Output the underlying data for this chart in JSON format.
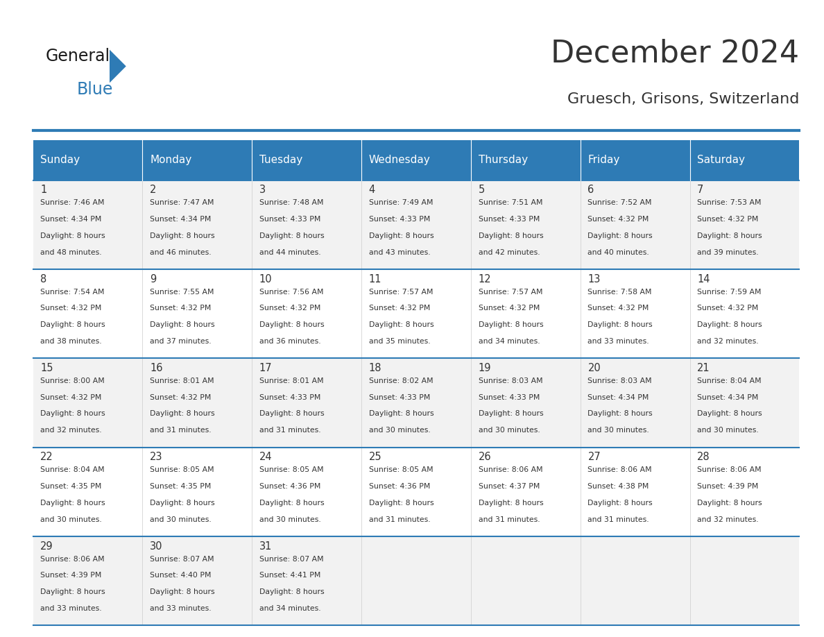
{
  "title": "December 2024",
  "subtitle": "Gruesch, Grisons, Switzerland",
  "header_bg": "#2E7BB5",
  "header_text_color": "#FFFFFF",
  "cell_bg_light": "#F2F2F2",
  "cell_bg_white": "#FFFFFF",
  "border_color": "#2E7BB5",
  "text_color": "#333333",
  "days_of_week": [
    "Sunday",
    "Monday",
    "Tuesday",
    "Wednesday",
    "Thursday",
    "Friday",
    "Saturday"
  ],
  "weeks": [
    [
      {
        "day": 1,
        "sunrise": "7:46 AM",
        "sunset": "4:34 PM",
        "daylight": "8 hours and 48 minutes."
      },
      {
        "day": 2,
        "sunrise": "7:47 AM",
        "sunset": "4:34 PM",
        "daylight": "8 hours and 46 minutes."
      },
      {
        "day": 3,
        "sunrise": "7:48 AM",
        "sunset": "4:33 PM",
        "daylight": "8 hours and 44 minutes."
      },
      {
        "day": 4,
        "sunrise": "7:49 AM",
        "sunset": "4:33 PM",
        "daylight": "8 hours and 43 minutes."
      },
      {
        "day": 5,
        "sunrise": "7:51 AM",
        "sunset": "4:33 PM",
        "daylight": "8 hours and 42 minutes."
      },
      {
        "day": 6,
        "sunrise": "7:52 AM",
        "sunset": "4:32 PM",
        "daylight": "8 hours and 40 minutes."
      },
      {
        "day": 7,
        "sunrise": "7:53 AM",
        "sunset": "4:32 PM",
        "daylight": "8 hours and 39 minutes."
      }
    ],
    [
      {
        "day": 8,
        "sunrise": "7:54 AM",
        "sunset": "4:32 PM",
        "daylight": "8 hours and 38 minutes."
      },
      {
        "day": 9,
        "sunrise": "7:55 AM",
        "sunset": "4:32 PM",
        "daylight": "8 hours and 37 minutes."
      },
      {
        "day": 10,
        "sunrise": "7:56 AM",
        "sunset": "4:32 PM",
        "daylight": "8 hours and 36 minutes."
      },
      {
        "day": 11,
        "sunrise": "7:57 AM",
        "sunset": "4:32 PM",
        "daylight": "8 hours and 35 minutes."
      },
      {
        "day": 12,
        "sunrise": "7:57 AM",
        "sunset": "4:32 PM",
        "daylight": "8 hours and 34 minutes."
      },
      {
        "day": 13,
        "sunrise": "7:58 AM",
        "sunset": "4:32 PM",
        "daylight": "8 hours and 33 minutes."
      },
      {
        "day": 14,
        "sunrise": "7:59 AM",
        "sunset": "4:32 PM",
        "daylight": "8 hours and 32 minutes."
      }
    ],
    [
      {
        "day": 15,
        "sunrise": "8:00 AM",
        "sunset": "4:32 PM",
        "daylight": "8 hours and 32 minutes."
      },
      {
        "day": 16,
        "sunrise": "8:01 AM",
        "sunset": "4:32 PM",
        "daylight": "8 hours and 31 minutes."
      },
      {
        "day": 17,
        "sunrise": "8:01 AM",
        "sunset": "4:33 PM",
        "daylight": "8 hours and 31 minutes."
      },
      {
        "day": 18,
        "sunrise": "8:02 AM",
        "sunset": "4:33 PM",
        "daylight": "8 hours and 30 minutes."
      },
      {
        "day": 19,
        "sunrise": "8:03 AM",
        "sunset": "4:33 PM",
        "daylight": "8 hours and 30 minutes."
      },
      {
        "day": 20,
        "sunrise": "8:03 AM",
        "sunset": "4:34 PM",
        "daylight": "8 hours and 30 minutes."
      },
      {
        "day": 21,
        "sunrise": "8:04 AM",
        "sunset": "4:34 PM",
        "daylight": "8 hours and 30 minutes."
      }
    ],
    [
      {
        "day": 22,
        "sunrise": "8:04 AM",
        "sunset": "4:35 PM",
        "daylight": "8 hours and 30 minutes."
      },
      {
        "day": 23,
        "sunrise": "8:05 AM",
        "sunset": "4:35 PM",
        "daylight": "8 hours and 30 minutes."
      },
      {
        "day": 24,
        "sunrise": "8:05 AM",
        "sunset": "4:36 PM",
        "daylight": "8 hours and 30 minutes."
      },
      {
        "day": 25,
        "sunrise": "8:05 AM",
        "sunset": "4:36 PM",
        "daylight": "8 hours and 31 minutes."
      },
      {
        "day": 26,
        "sunrise": "8:06 AM",
        "sunset": "4:37 PM",
        "daylight": "8 hours and 31 minutes."
      },
      {
        "day": 27,
        "sunrise": "8:06 AM",
        "sunset": "4:38 PM",
        "daylight": "8 hours and 31 minutes."
      },
      {
        "day": 28,
        "sunrise": "8:06 AM",
        "sunset": "4:39 PM",
        "daylight": "8 hours and 32 minutes."
      }
    ],
    [
      {
        "day": 29,
        "sunrise": "8:06 AM",
        "sunset": "4:39 PM",
        "daylight": "8 hours and 33 minutes."
      },
      {
        "day": 30,
        "sunrise": "8:07 AM",
        "sunset": "4:40 PM",
        "daylight": "8 hours and 33 minutes."
      },
      {
        "day": 31,
        "sunrise": "8:07 AM",
        "sunset": "4:41 PM",
        "daylight": "8 hours and 34 minutes."
      },
      null,
      null,
      null,
      null
    ]
  ],
  "logo_text_general": "General",
  "logo_text_blue": "Blue",
  "logo_color_general": "#1a1a1a",
  "logo_color_blue": "#2E7BB5"
}
